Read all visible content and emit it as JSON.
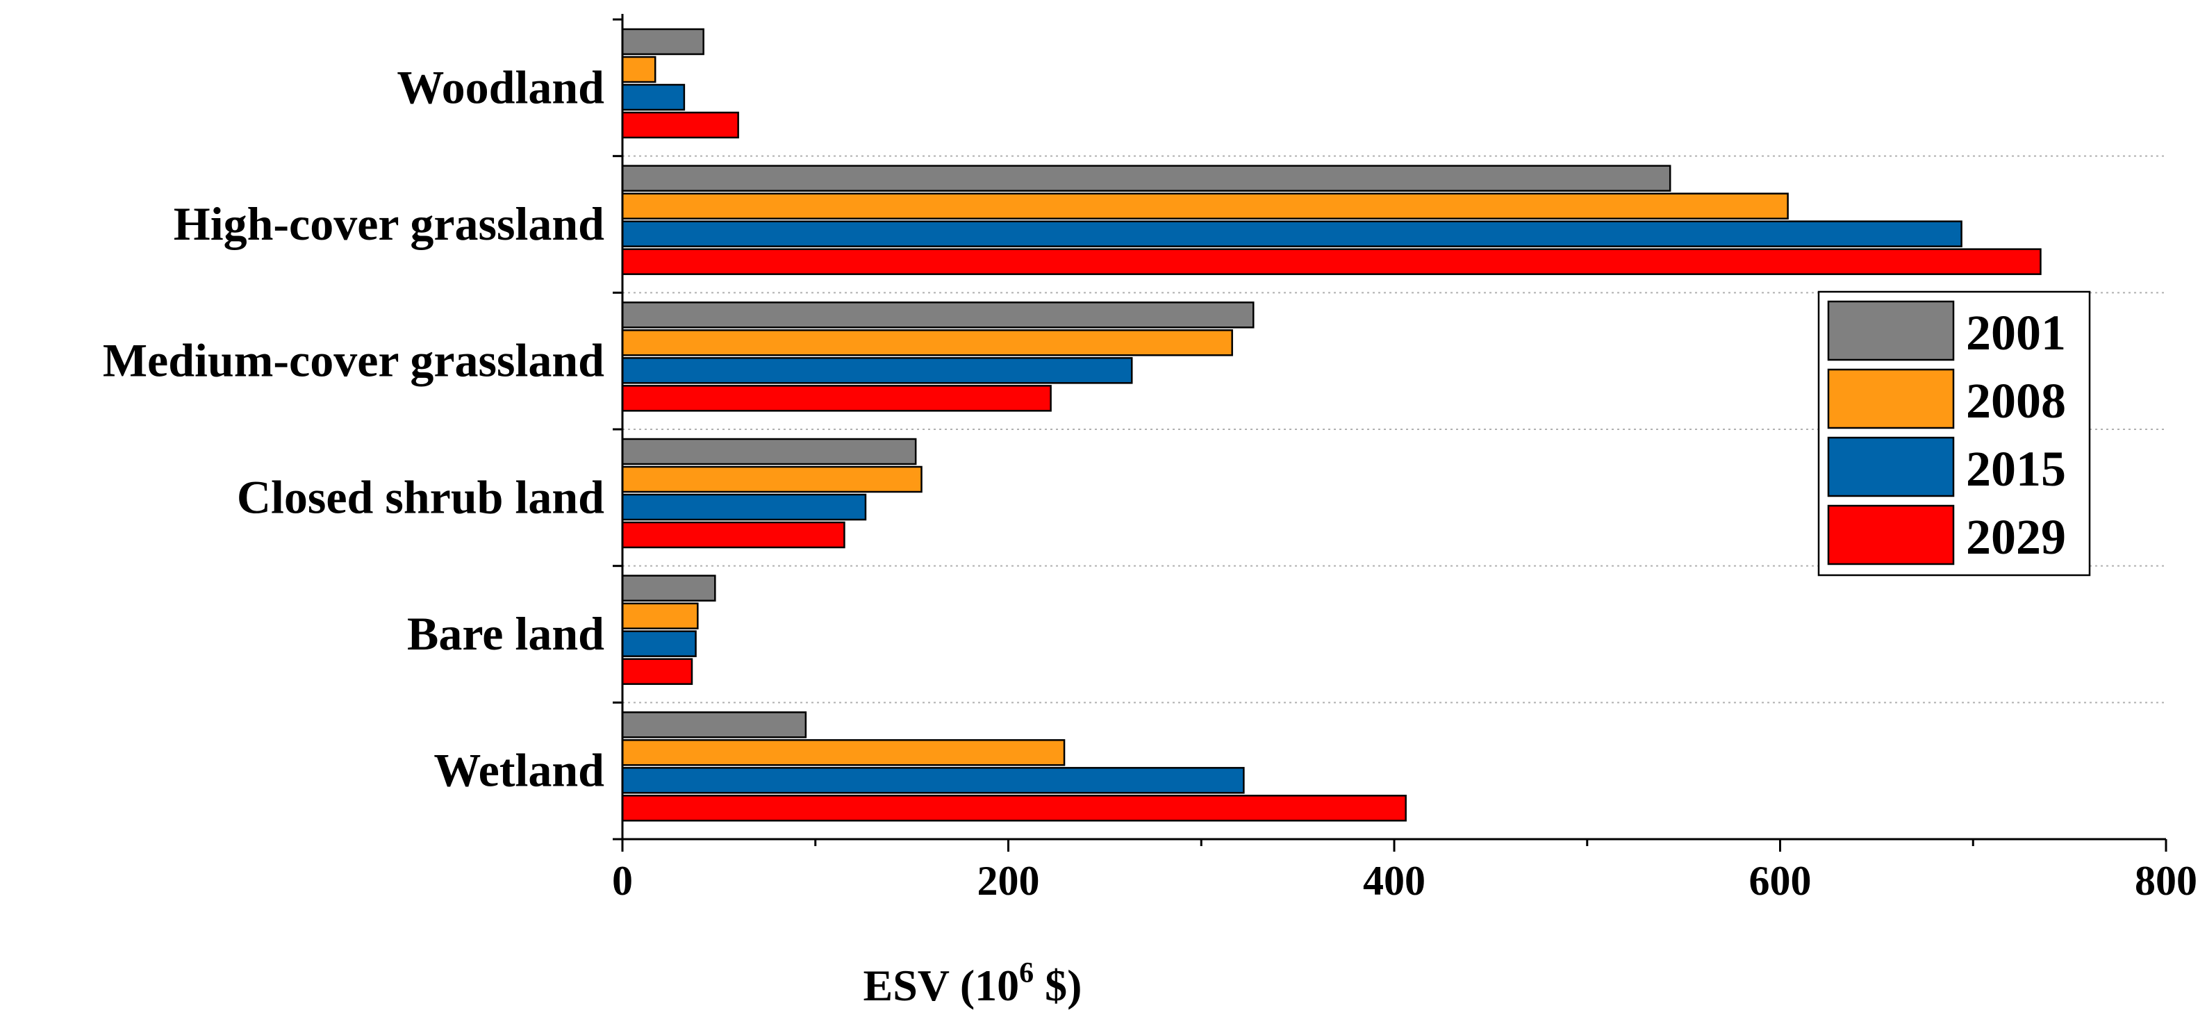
{
  "chart_data": {
    "type": "bar",
    "orientation": "horizontal",
    "categories": [
      "Woodland",
      "High-cover grassland",
      "Medium-cover grassland",
      "Closed shrub land",
      "Bare land",
      "Wetland"
    ],
    "series": [
      {
        "name": "2001",
        "color": "#808080",
        "values": [
          42,
          543,
          327,
          152,
          48,
          95
        ]
      },
      {
        "name": "2008",
        "color": "#FF9914",
        "values": [
          17,
          604,
          316,
          155,
          39,
          229
        ]
      },
      {
        "name": "2015",
        "color": "#0064AA",
        "values": [
          32,
          694,
          264,
          126,
          38,
          322
        ]
      },
      {
        "name": "2029",
        "color": "#FF0000",
        "values": [
          60,
          735,
          222,
          115,
          36,
          406
        ]
      }
    ],
    "xlabel_main": "ESV (10",
    "xlabel_sup": "6",
    "xlabel_end": " $)",
    "ylabel": "",
    "title": "",
    "xlim": [
      0,
      800
    ],
    "xticks": [
      0,
      200,
      400,
      600,
      800
    ],
    "legend_position": "right",
    "grid": "horizontal dotted separators between categories"
  }
}
